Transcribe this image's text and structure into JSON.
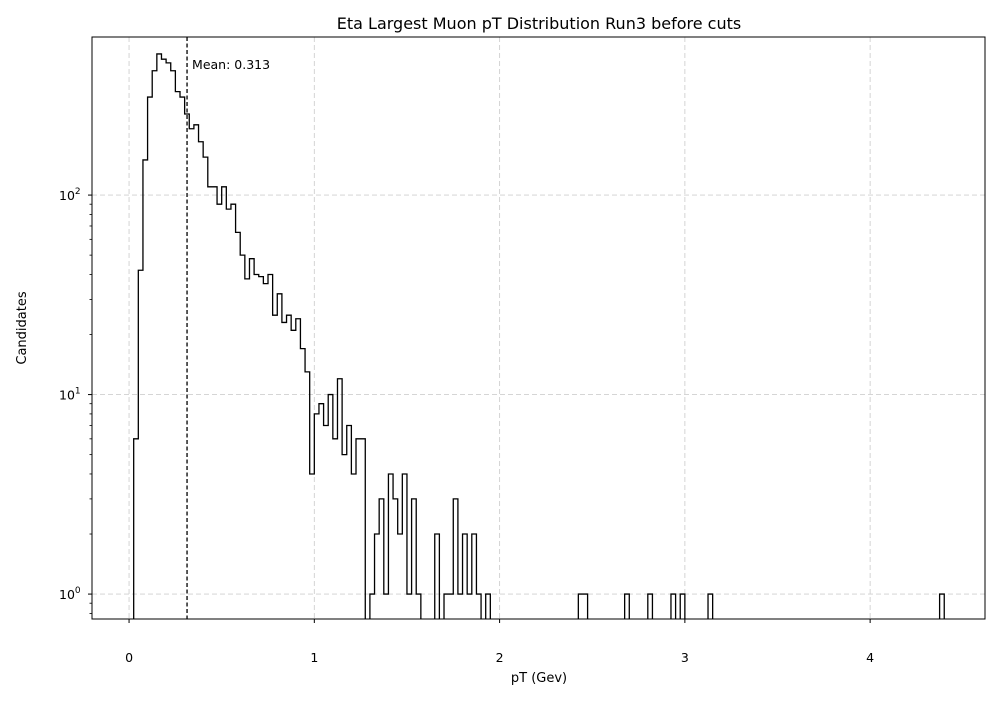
{
  "chart_data": {
    "type": "histogram",
    "title": "Eta Largest Muon pT Distribution Run3 before cuts",
    "xlabel": "pT (Gev)",
    "ylabel": "Candidates",
    "y_scale": "log",
    "xlim": [
      -0.2,
      4.62
    ],
    "ylim": [
      0.75,
      620
    ],
    "grid": true,
    "bin_width": 0.025,
    "x_ticks": [
      0,
      1,
      2,
      3,
      4
    ],
    "y_ticks": [
      {
        "value": 1,
        "base": "10",
        "exp": "0"
      },
      {
        "value": 10,
        "base": "10",
        "exp": "1"
      },
      {
        "value": 100,
        "base": "10",
        "exp": "2"
      }
    ],
    "bins": [
      [
        0.025,
        6
      ],
      [
        0.05,
        42
      ],
      [
        0.075,
        150
      ],
      [
        0.1,
        310
      ],
      [
        0.125,
        420
      ],
      [
        0.15,
        510
      ],
      [
        0.175,
        480
      ],
      [
        0.2,
        460
      ],
      [
        0.225,
        420
      ],
      [
        0.25,
        330
      ],
      [
        0.275,
        310
      ],
      [
        0.3,
        255
      ],
      [
        0.325,
        215
      ],
      [
        0.35,
        225
      ],
      [
        0.375,
        185
      ],
      [
        0.4,
        155
      ],
      [
        0.425,
        110
      ],
      [
        0.45,
        110
      ],
      [
        0.475,
        90
      ],
      [
        0.5,
        110
      ],
      [
        0.525,
        85
      ],
      [
        0.55,
        90
      ],
      [
        0.575,
        65
      ],
      [
        0.6,
        50
      ],
      [
        0.625,
        38
      ],
      [
        0.65,
        48
      ],
      [
        0.675,
        40
      ],
      [
        0.7,
        39
      ],
      [
        0.725,
        36
      ],
      [
        0.75,
        40
      ],
      [
        0.775,
        25
      ],
      [
        0.8,
        32
      ],
      [
        0.825,
        23
      ],
      [
        0.85,
        25
      ],
      [
        0.875,
        21
      ],
      [
        0.9,
        24
      ],
      [
        0.925,
        17
      ],
      [
        0.95,
        13
      ],
      [
        0.975,
        4
      ],
      [
        1.0,
        8
      ],
      [
        1.025,
        9
      ],
      [
        1.05,
        7
      ],
      [
        1.075,
        10
      ],
      [
        1.1,
        6
      ],
      [
        1.125,
        12
      ],
      [
        1.15,
        5
      ],
      [
        1.175,
        7
      ],
      [
        1.2,
        4
      ],
      [
        1.225,
        6
      ],
      [
        1.25,
        6
      ],
      [
        1.3,
        1
      ],
      [
        1.325,
        2
      ],
      [
        1.35,
        3
      ],
      [
        1.375,
        1
      ],
      [
        1.4,
        4
      ],
      [
        1.425,
        3
      ],
      [
        1.45,
        2
      ],
      [
        1.475,
        4
      ],
      [
        1.5,
        1
      ],
      [
        1.525,
        3
      ],
      [
        1.55,
        1
      ],
      [
        1.65,
        2
      ],
      [
        1.7,
        1
      ],
      [
        1.725,
        1
      ],
      [
        1.75,
        3
      ],
      [
        1.775,
        1
      ],
      [
        1.8,
        2
      ],
      [
        1.825,
        1
      ],
      [
        1.85,
        2
      ],
      [
        1.875,
        1
      ],
      [
        1.925,
        1
      ],
      [
        2.425,
        1
      ],
      [
        2.45,
        1
      ],
      [
        2.675,
        1
      ],
      [
        2.8,
        1
      ],
      [
        2.925,
        1
      ],
      [
        2.975,
        1
      ],
      [
        3.125,
        1
      ],
      [
        4.375,
        1
      ]
    ],
    "mean_line": {
      "x": 0.313,
      "label": "Mean: 0.313"
    }
  }
}
